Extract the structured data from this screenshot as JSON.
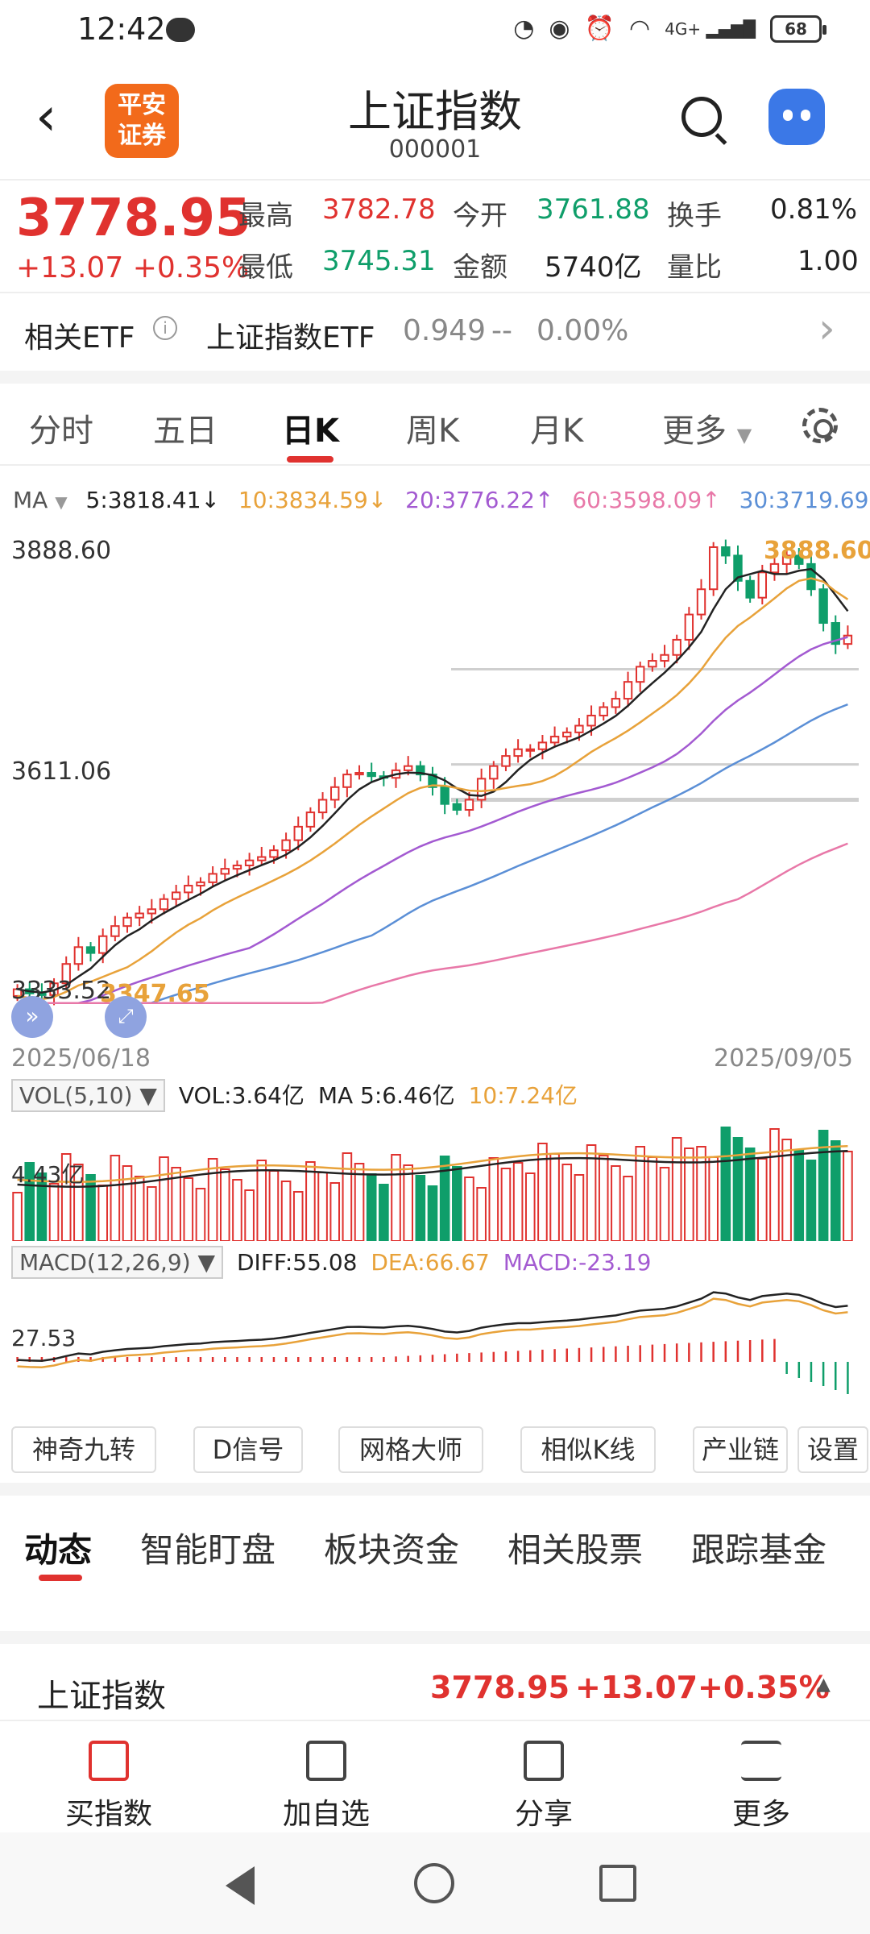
{
  "status_bar": {
    "time": "12:42",
    "battery": "68",
    "network": "4G+"
  },
  "header": {
    "title": "上证指数",
    "code": "000001",
    "logo_text": "平安证券"
  },
  "quote": {
    "price": "3778.95",
    "change": "+13.07",
    "change_pct": "+0.35%",
    "high_label": "最高",
    "high": "3782.78",
    "low_label": "最低",
    "low": "3745.31",
    "open_label": "今开",
    "open": "3761.88",
    "amount_label": "金额",
    "amount": "5740亿",
    "turnover_label": "换手",
    "turnover": "0.81%",
    "ratio_label": "量比",
    "ratio": "1.00"
  },
  "etf": {
    "label": "相关ETF",
    "name": "上证指数ETF",
    "price": "0.949",
    "change": "--",
    "pct": "0.00%"
  },
  "chart_tabs": [
    "分时",
    "五日",
    "日K",
    "周K",
    "月K",
    "更多"
  ],
  "ma": {
    "label": "MA",
    "ma5": "5:3818.41↓",
    "ma10": "10:3834.59↓",
    "ma20": "20:3776.22↑",
    "ma60": "60:3598.09↑",
    "ma30": "30:3719.69↑"
  },
  "chart_labels": {
    "y_top": "3888.60",
    "y_mid": "3611.06",
    "y_low": "3333.52",
    "high_mark": "3888.60",
    "low_mark": "3347.65",
    "date_start": "2025/06/18",
    "date_end": "2025/09/05"
  },
  "volume": {
    "indicator": "VOL(5,10)",
    "vol": "VOL:3.64亿",
    "ma5": "MA 5:6.46亿",
    "ma10": "10:7.24亿",
    "axis": "4.43亿"
  },
  "macd": {
    "indicator": "MACD(12,26,9)",
    "diff": "DIFF:55.08",
    "dea": "DEA:66.67",
    "macd": "MACD:-23.19",
    "axis": "27.53"
  },
  "tools": [
    "神奇九转",
    "D信号",
    "网格大师",
    "相似K线",
    "产业链",
    "设置"
  ],
  "bottom_tabs": [
    "动态",
    "智能盯盘",
    "板块资金",
    "相关股票",
    "跟踪基金"
  ],
  "ticker": {
    "name": "上证指数",
    "price": "3778.95",
    "change": "+13.07",
    "pct": "+0.35%"
  },
  "actions": [
    "买指数",
    "加自选",
    "分享",
    "更多"
  ],
  "colors": {
    "up": "#e0322f",
    "down": "#0f9e6a",
    "ma5": "#222222",
    "ma10": "#e8a23a",
    "ma20": "#a35ad1",
    "ma30": "#5b8fd6",
    "ma60": "#e878a8"
  },
  "chart_data": {
    "type": "candlestick",
    "x_range": [
      "2025/06/18",
      "2025/09/05"
    ],
    "ylim": [
      3333.52,
      3888.6
    ],
    "close_series": [
      3355,
      3350,
      3348,
      3362,
      3385,
      3405,
      3398,
      3418,
      3430,
      3440,
      3445,
      3450,
      3462,
      3470,
      3478,
      3482,
      3492,
      3498,
      3502,
      3508,
      3512,
      3520,
      3532,
      3548,
      3565,
      3580,
      3595,
      3610,
      3612,
      3608,
      3606,
      3615,
      3620,
      3610,
      3595,
      3575,
      3568,
      3580,
      3605,
      3620,
      3632,
      3640,
      3640,
      3648,
      3655,
      3660,
      3668,
      3680,
      3690,
      3700,
      3720,
      3738,
      3745,
      3752,
      3770,
      3800,
      3830,
      3880,
      3870,
      3840,
      3820,
      3850,
      3860,
      3870,
      3860,
      3830,
      3790,
      3765,
      3775
    ]
  }
}
